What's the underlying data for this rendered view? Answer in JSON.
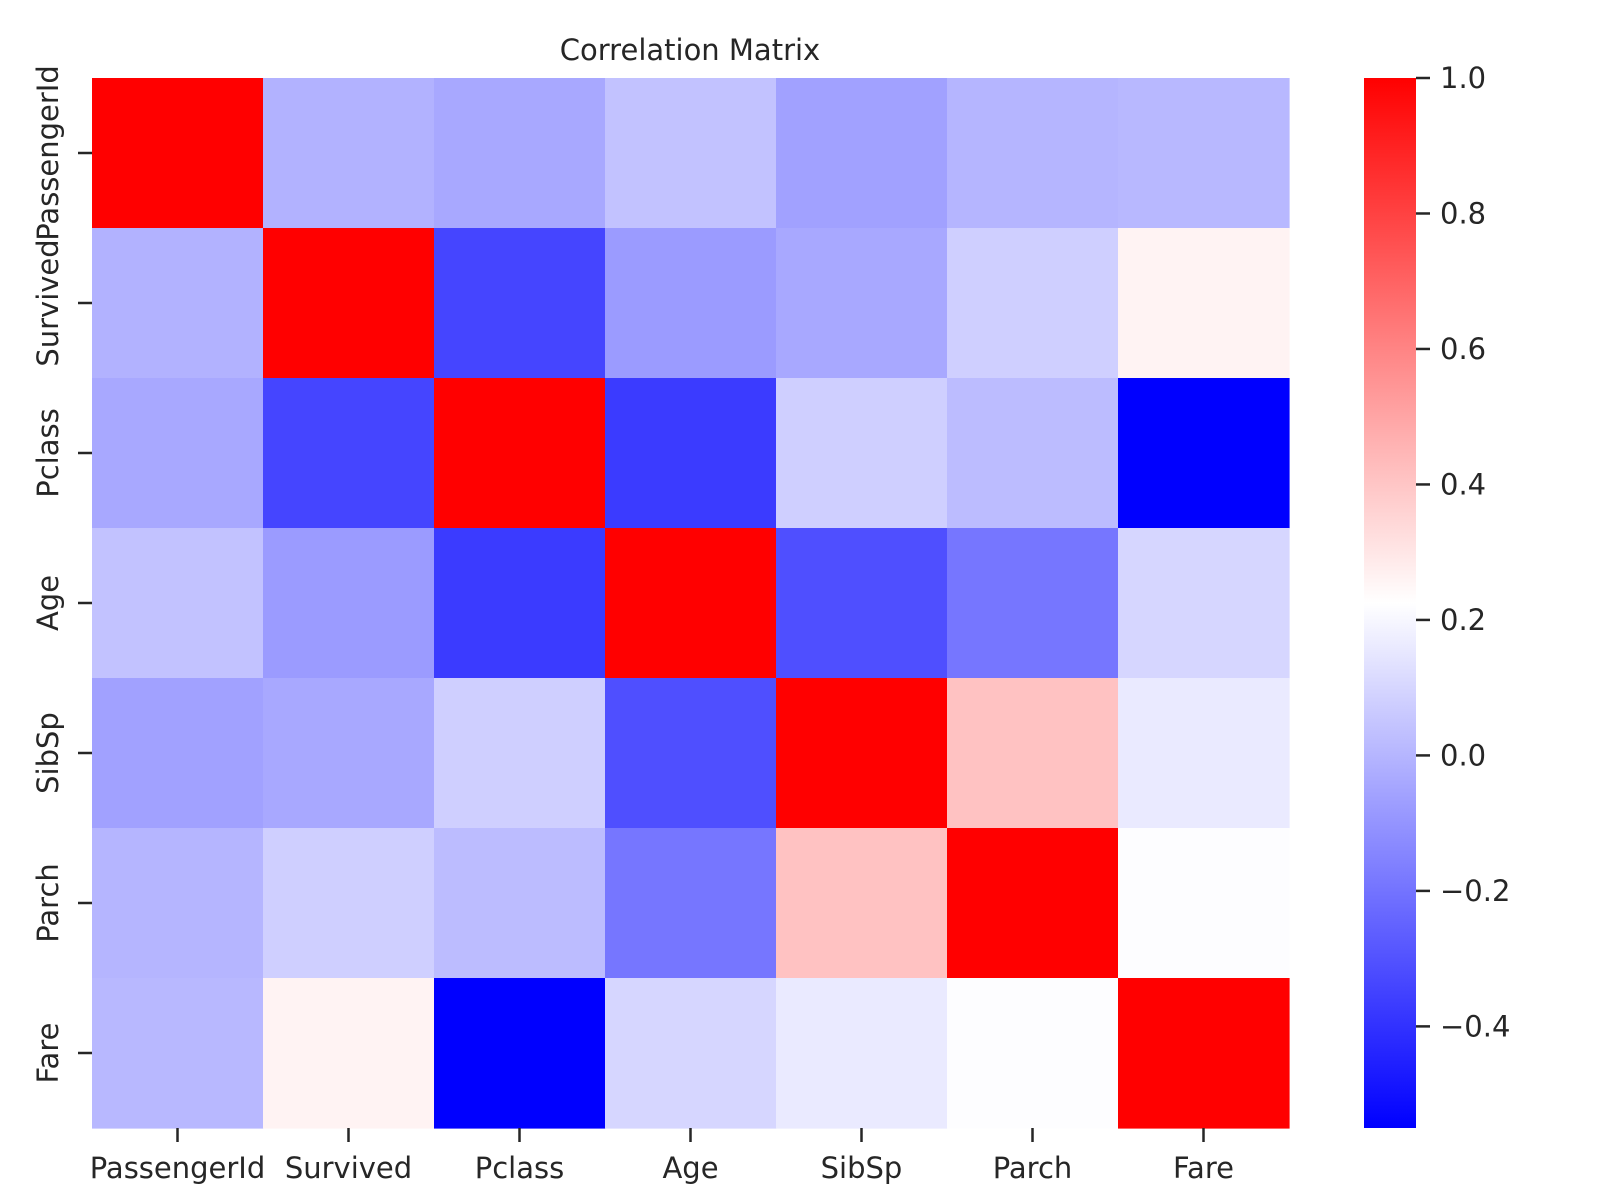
{
  "chart_data": {
    "type": "heatmap",
    "title": "Correlation Matrix",
    "xlabel": "",
    "ylabel": "",
    "row_labels": [
      "PassengerId",
      "Survived",
      "Pclass",
      "Age",
      "SibSp",
      "Parch",
      "Fare"
    ],
    "column_labels": [
      "PassengerId",
      "Survived",
      "Pclass",
      "Age",
      "SibSp",
      "Parch",
      "Fare"
    ],
    "values": [
      [
        1.0,
        -0.01,
        -0.04,
        0.04,
        -0.06,
        -0.0,
        0.01
      ],
      [
        -0.01,
        1.0,
        -0.34,
        -0.08,
        -0.04,
        0.08,
        0.26
      ],
      [
        -0.04,
        -0.34,
        1.0,
        -0.37,
        0.08,
        0.02,
        -0.55
      ],
      [
        0.04,
        -0.08,
        -0.37,
        1.0,
        -0.31,
        -0.19,
        0.1
      ],
      [
        -0.06,
        -0.04,
        0.08,
        -0.31,
        1.0,
        0.41,
        0.16
      ],
      [
        -0.0,
        0.08,
        0.02,
        -0.19,
        0.41,
        1.0,
        0.22
      ],
      [
        0.01,
        0.26,
        -0.55,
        0.1,
        0.16,
        0.22,
        1.0
      ]
    ],
    "colormap": "bwr",
    "color_range": [
      -0.55,
      1.0
    ],
    "colorbar": {
      "position": "right",
      "ticks": [
        1.0,
        0.8,
        0.6,
        0.4,
        0.2,
        0.0,
        -0.2,
        -0.4
      ],
      "tick_labels": [
        "1.0",
        "0.8",
        "0.6",
        "0.4",
        "0.2",
        "0.0",
        "−0.2",
        "−0.4"
      ]
    },
    "colors": {
      "low": "#0000ff",
      "mid": "#ffffff",
      "high": "#ff0000",
      "text": "#262626"
    },
    "grid": false
  }
}
